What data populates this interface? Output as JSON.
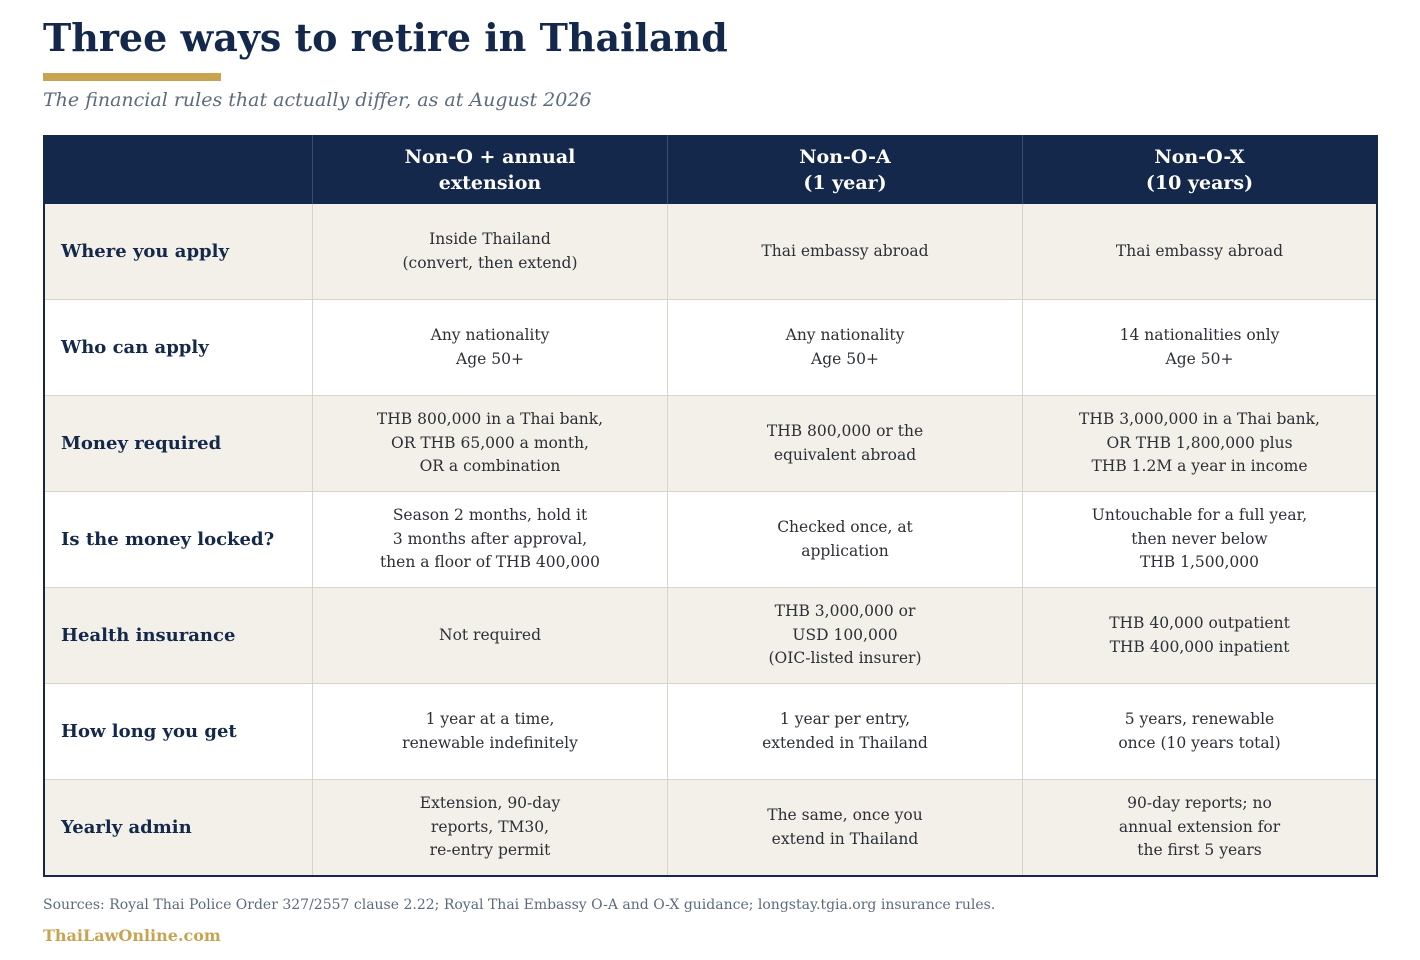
{
  "title": "Three ways to retire in Thailand",
  "subtitle": "The financial rules that actually differ, as at August 2026",
  "colors": {
    "navy": "#13284a",
    "gold": "#c8a452",
    "row_shade": "#f3f0ea",
    "muted_text": "#5c6b7c"
  },
  "table": {
    "headers": [
      "",
      "Non-O + annual\nextension",
      "Non-O-A\n(1 year)",
      "Non-O-X\n(10 years)"
    ],
    "rows": [
      {
        "label": "Where you apply",
        "cells": [
          "Inside Thailand\n(convert, then extend)",
          "Thai embassy abroad",
          "Thai embassy abroad"
        ]
      },
      {
        "label": "Who can apply",
        "cells": [
          "Any nationality\nAge 50+",
          "Any nationality\nAge 50+",
          "14 nationalities only\nAge 50+"
        ]
      },
      {
        "label": "Money required",
        "cells": [
          "THB 800,000 in a Thai bank,\nOR THB 65,000 a month,\nOR a combination",
          "THB 800,000 or the\nequivalent abroad",
          "THB 3,000,000 in a Thai bank,\nOR THB 1,800,000 plus\nTHB 1.2M a year in income"
        ]
      },
      {
        "label": "Is the money locked?",
        "cells": [
          "Season 2 months, hold it\n3 months after approval,\nthen a floor of THB 400,000",
          "Checked once, at\napplication",
          "Untouchable for a full year,\nthen never below\nTHB 1,500,000"
        ]
      },
      {
        "label": "Health insurance",
        "cells": [
          "Not required",
          "THB 3,000,000 or\nUSD 100,000\n(OIC-listed insurer)",
          "THB 40,000 outpatient\nTHB 400,000 inpatient"
        ]
      },
      {
        "label": "How long you get",
        "cells": [
          "1 year at a time,\nrenewable indefinitely",
          "1 year per entry,\nextended in Thailand",
          "5 years, renewable\nonce (10 years total)"
        ]
      },
      {
        "label": "Yearly admin",
        "cells": [
          "Extension, 90-day\nreports, TM30,\nre-entry permit",
          "The same, once you\nextend in Thailand",
          "90-day reports; no\nannual extension for\nthe first 5 years"
        ]
      }
    ]
  },
  "sources": "Sources: Royal Thai Police Order 327/2557 clause 2.22; Royal Thai Embassy O-A and O-X guidance; longstay.tgia.org insurance rules.",
  "brand": "ThaiLawOnline.com"
}
